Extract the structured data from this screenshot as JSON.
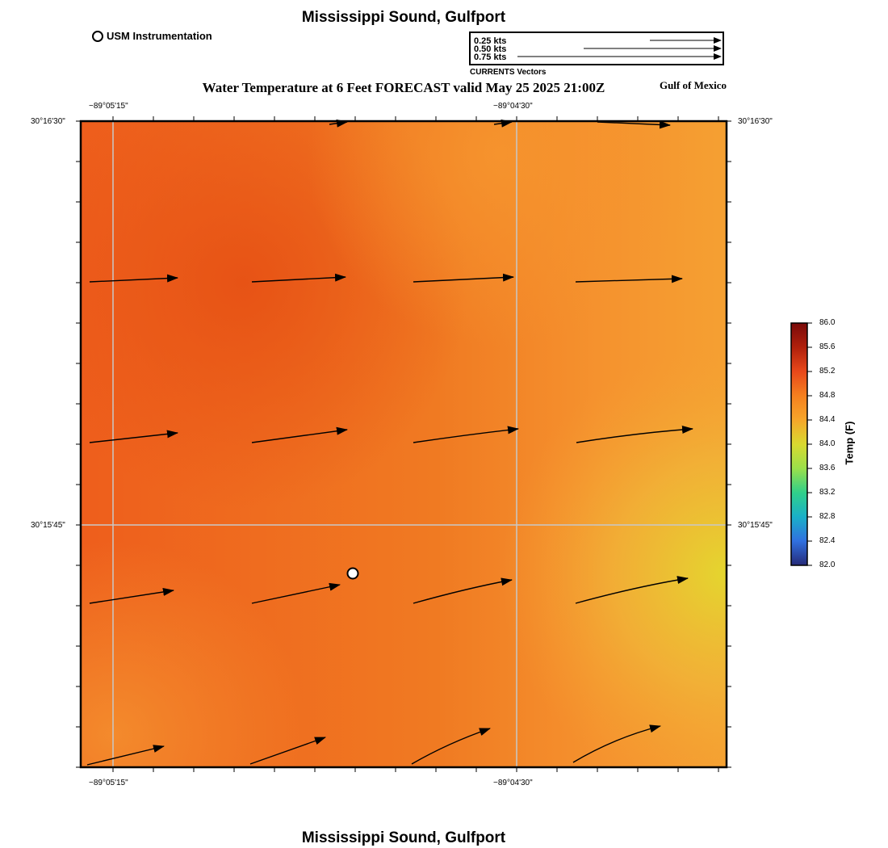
{
  "header": {
    "title": "Mississippi Sound, Gulfport",
    "footer_title": "Mississippi Sound, Gulfport",
    "plot_title": "Water Temperature at 6 Feet FORECAST valid May 25 2025 21:00Z",
    "region_label": "Gulf of Mexico"
  },
  "legend": {
    "usm_label": "USM Instrumentation",
    "vector_scale": [
      "0.25 kts",
      "0.50 kts",
      "0.75 kts"
    ],
    "vector_title": "CURRENTS Vectors"
  },
  "axes": {
    "lon_ticks": [
      "−89°05'15\"",
      "−89°04'30\""
    ],
    "lat_ticks": [
      "30°16'30\"",
      "30°15'45\""
    ]
  },
  "colorbar": {
    "title": "Temp (F)",
    "ticks": [
      "86.0",
      "85.6",
      "85.2",
      "84.8",
      "84.4",
      "84.0",
      "83.6",
      "83.2",
      "82.8",
      "82.4",
      "82.0"
    ],
    "colors": [
      "#7a0a0a",
      "#b0200c",
      "#e8481a",
      "#f5801f",
      "#f6a62a",
      "#d9d930",
      "#9be04a",
      "#30d08a",
      "#1ab0c8",
      "#3070e0",
      "#262a78"
    ]
  },
  "field_colors": {
    "warm": "#ee5a18",
    "mid": "#f5832a",
    "cool": "#f4b034",
    "coolest": "#e6d42c"
  }
}
